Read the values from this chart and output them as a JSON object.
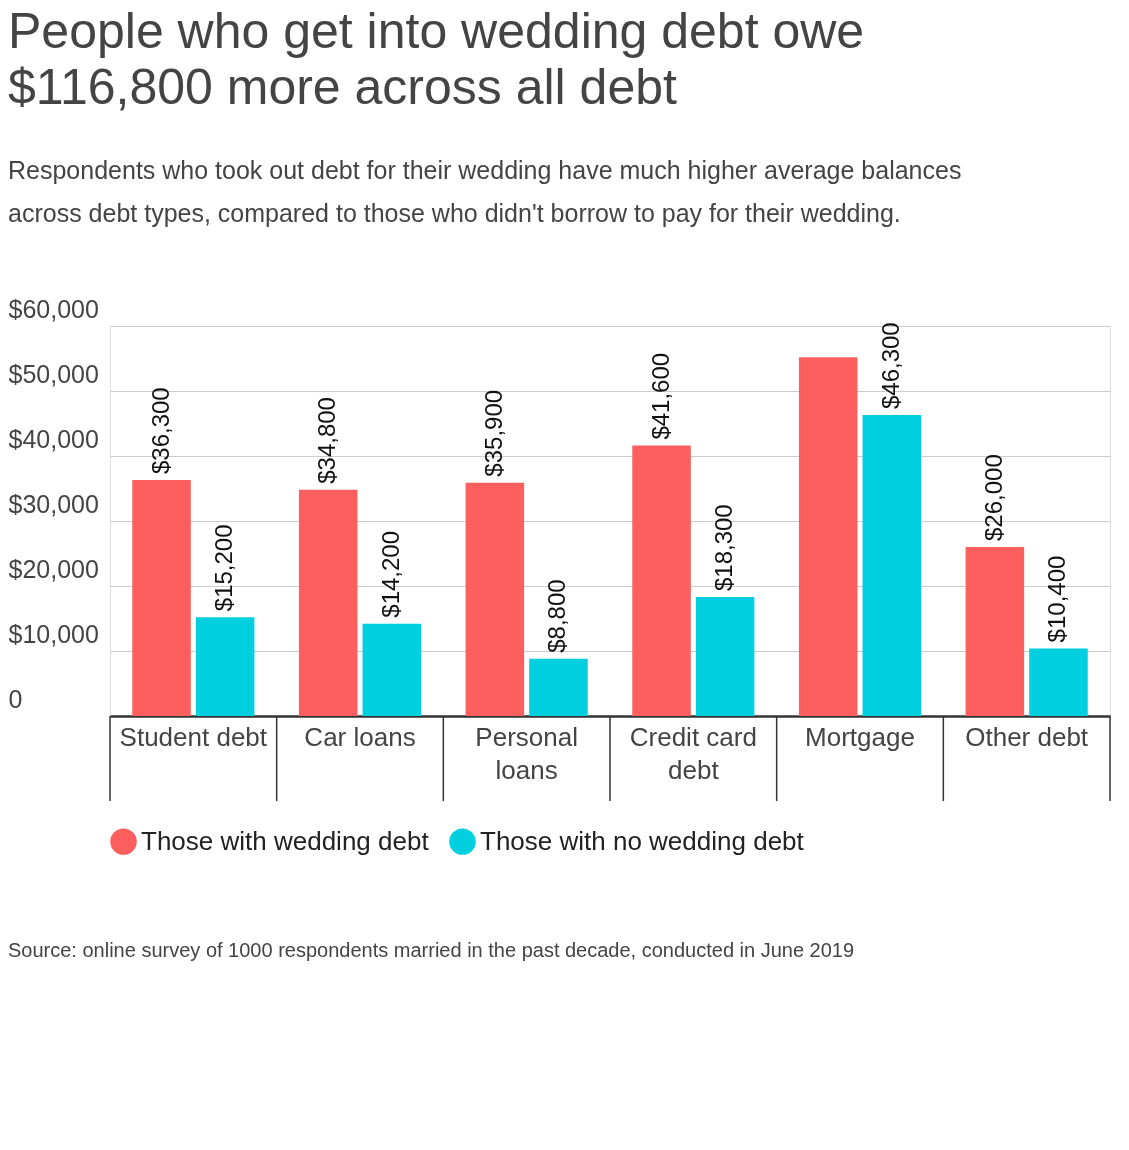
{
  "chart_data": {
    "type": "bar",
    "title": "People who get into wedding debt owe $116,800 more across all debt",
    "subtitle": "Respondents who took out debt for their wedding have much higher average balances across debt types, compared to those who didn't borrow to pay for their wedding.",
    "categories": [
      "Student debt",
      "Car loans",
      "Personal loans",
      "Credit card debt",
      "Mortgage",
      "Other debt"
    ],
    "series": [
      {
        "name": "Those with wedding debt",
        "color": "#fd5e5e",
        "values": [
          36300,
          34800,
          35900,
          41600,
          55200,
          26000
        ],
        "value_labels": [
          "$36,300",
          "$34,800",
          "$35,900",
          "$41,600",
          null,
          "$26,000"
        ]
      },
      {
        "name": "Those with no wedding debt",
        "color": "#00cfdf",
        "values": [
          15200,
          14200,
          8800,
          18300,
          46300,
          10400
        ],
        "value_labels": [
          "$15,200",
          "$14,200",
          "$8,800",
          "$18,300",
          "$46,300",
          "$10,400"
        ]
      }
    ],
    "ylim": [
      0,
      60000
    ],
    "yticks": [
      {
        "value": 0,
        "label": "0"
      },
      {
        "value": 10000,
        "label": "$10,000"
      },
      {
        "value": 20000,
        "label": "$20,000"
      },
      {
        "value": 30000,
        "label": "$30,000"
      },
      {
        "value": 40000,
        "label": "$40,000"
      },
      {
        "value": 50000,
        "label": "$50,000"
      },
      {
        "value": 60000,
        "label": "$60,000"
      }
    ],
    "grid": "y",
    "legend": "bottom",
    "annotations": [
      "Source: online survey of 1000 respondents married in the past decade, conducted in June 2019"
    ]
  }
}
